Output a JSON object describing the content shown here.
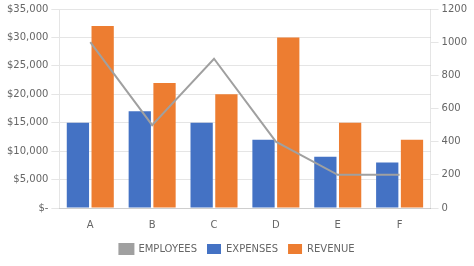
{
  "chart_data": {
    "type": "bar",
    "categories": [
      "A",
      "B",
      "C",
      "D",
      "E",
      "F"
    ],
    "series": [
      {
        "name": "EXPENSES",
        "color": "#4472C4",
        "values": [
          15000,
          17000,
          15000,
          12000,
          9000,
          8000
        ]
      },
      {
        "name": "REVENUE",
        "color": "#ED7D31",
        "values": [
          32000,
          22000,
          20000,
          30000,
          15000,
          12000
        ]
      },
      {
        "name": "EMPLOYEES",
        "type": "line",
        "color": "#A0A0A0",
        "marker": "none",
        "axis": "y2",
        "values": [
          1000,
          500,
          900,
          400,
          200,
          200
        ]
      }
    ],
    "ylim": [
      0,
      35000
    ],
    "yticks": [
      {
        "value": 0,
        "label": "$-"
      },
      {
        "value": 5000,
        "label": "$5,000"
      },
      {
        "value": 10000,
        "label": "$10,000"
      },
      {
        "value": 15000,
        "label": "$15,000"
      },
      {
        "value": 20000,
        "label": "$20,000"
      },
      {
        "value": 25000,
        "label": "$25,000"
      },
      {
        "value": 30000,
        "label": "$30,000"
      },
      {
        "value": 35000,
        "label": "$35,000"
      }
    ],
    "y2lim": [
      0,
      1200
    ],
    "y2ticks": [
      0,
      200,
      400,
      600,
      800,
      1000,
      1200
    ],
    "grid": true,
    "legend": "bottom"
  }
}
